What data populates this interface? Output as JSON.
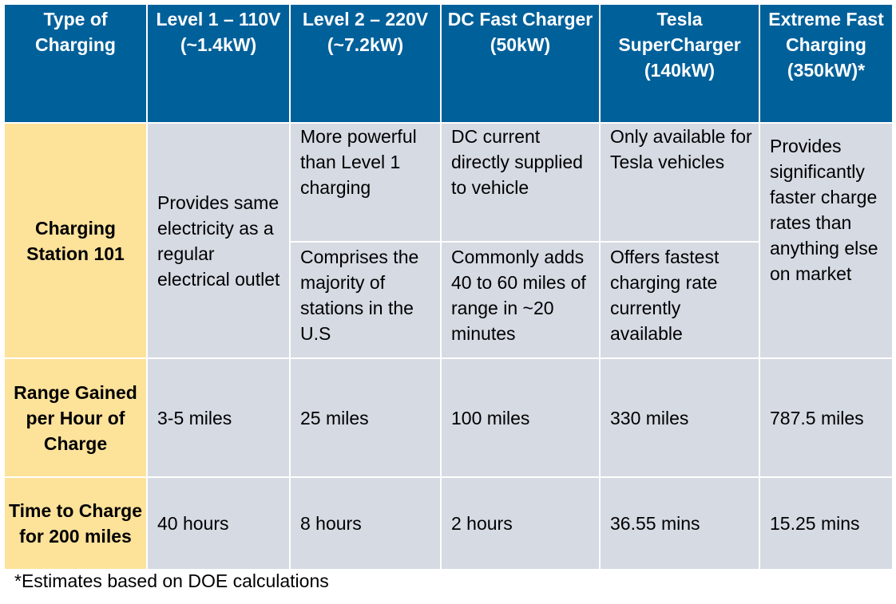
{
  "table": {
    "headers": [
      "Type of Charging",
      "Level 1 – 110V (~1.4kW)",
      "Level 2 – 220V (~7.2kW)",
      "DC Fast Charger (50kW)",
      "Tesla SuperCharger (140kW)",
      "Extreme Fast Charging (350kW)*"
    ],
    "station101": {
      "label": "Charging Station 101",
      "level1": "Provides same electricity as a regular electrical outlet",
      "level2_a": "More powerful than Level 1 charging",
      "level2_b": "Comprises the majority of stations in the U.S",
      "dc_a": "DC current directly supplied to vehicle",
      "dc_b": "Commonly adds 40 to 60 miles of range in ~20 minutes",
      "tesla_a": "Only available for Tesla vehicles",
      "tesla_b": "Offers fastest charging rate currently available",
      "extreme": "Provides significantly faster charge rates than anything else on market"
    },
    "range": {
      "label": "Range Gained per Hour of Charge",
      "values": [
        "3-5 miles",
        "25 miles",
        "100 miles",
        "330 miles",
        "787.5 miles"
      ]
    },
    "time": {
      "label": "Time to Charge for 200 miles",
      "values": [
        "40 hours",
        "8 hours",
        "2 hours",
        "36.55 mins",
        "15.25 mins"
      ]
    }
  },
  "footnote": "*Estimates based on DOE calculations",
  "colors": {
    "header_bg": "#00609a",
    "row_label_bg": "#fde29a",
    "cell_bg": "#d5dae3"
  }
}
